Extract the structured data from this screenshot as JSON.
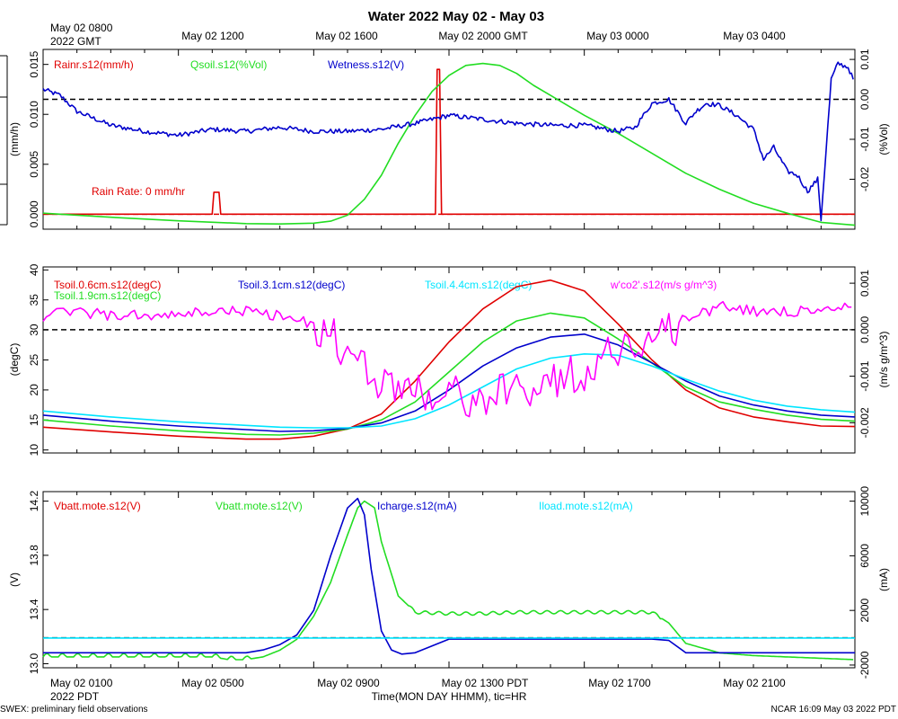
{
  "title": "Water 2022 May 02 - May 03",
  "top_time_labels": [
    "May 02 0800",
    "2022 GMT",
    "May 02 1200",
    "May 02 1600",
    "May 02 2000 GMT",
    "May 03 0000",
    "May 03 0400"
  ],
  "bottom_time_labels": [
    "May 02 0100",
    "2022 PDT",
    "May 02 0500",
    "May 02 0900",
    "May 02 1300 PDT",
    "May 02 1700",
    "May 02 2100"
  ],
  "xlabel": "Time(MON DAY HHMM), tic=HR",
  "footer_left": "SWEX: preliminary field observations",
  "footer_right": "NCAR 16:09 May 03 2022 PDT",
  "colors": {
    "red": "#e00000",
    "green": "#22dd22",
    "blue": "#0000cc",
    "cyan": "#00e5ff",
    "magenta": "#ff00ff",
    "axis": "#000000"
  },
  "chart_data": [
    {
      "type": "line",
      "id": "water",
      "x_range_hours": [
        0,
        24
      ],
      "left_axis": {
        "label": "(mm/h)",
        "ylim": [
          -0.0015,
          0.0165
        ],
        "ticks": [
          "0.015",
          "0.010",
          "0.005",
          "0.000"
        ],
        "tick_values": [
          0.015,
          0.01,
          0.005,
          0.0
        ]
      },
      "right_axis": {
        "label": "(%Vol)",
        "ylim": [
          -0.0325,
          0.0125
        ],
        "ticks": [
          "0.01",
          "0.00",
          "-0.01",
          "-0.02"
        ],
        "tick_values": [
          0.01,
          0.0,
          -0.01,
          -0.02
        ]
      },
      "ref_lines": [
        {
          "axis": "right",
          "value": 0.0,
          "color": "black",
          "dash": true
        },
        {
          "axis": "left",
          "value": 0.0,
          "color": "red",
          "dash": true
        }
      ],
      "annotation": "Rain Rate: 0 mm/hr",
      "legend": [
        {
          "text": "Rainr.s12(mm/h)",
          "color": "red"
        },
        {
          "text": "Qsoil.s12(%Vol)",
          "color": "green"
        },
        {
          "text": "Wetness.s12(V)",
          "color": "blue"
        }
      ],
      "series": [
        {
          "name": "Rainr.s12",
          "color": "red",
          "axis": "left",
          "x": [
            0,
            5.0,
            5.05,
            5.2,
            5.25,
            11.6,
            11.65,
            11.72,
            11.78,
            24
          ],
          "y": [
            0,
            0,
            0.0022,
            0.0022,
            0,
            0,
            0.0145,
            0.0145,
            0,
            0
          ]
        },
        {
          "name": "Qsoil.s12",
          "color": "green",
          "axis": "right",
          "x": [
            0,
            2,
            4,
            6,
            7,
            8,
            8.5,
            9,
            9.5,
            10,
            10.5,
            11,
            11.5,
            12,
            12.5,
            13,
            13.5,
            14,
            14.5,
            15,
            15.5,
            16,
            17,
            18,
            19,
            20,
            21,
            22,
            23,
            24
          ],
          "y": [
            -0.0285,
            -0.0295,
            -0.0304,
            -0.0311,
            -0.0312,
            -0.031,
            -0.0305,
            -0.029,
            -0.025,
            -0.019,
            -0.011,
            -0.004,
            0.002,
            0.006,
            0.0085,
            0.009,
            0.0085,
            0.0065,
            0.0035,
            0.001,
            -0.0015,
            -0.004,
            -0.0085,
            -0.0135,
            -0.0185,
            -0.0225,
            -0.026,
            -0.0285,
            -0.0308,
            -0.0315
          ]
        },
        {
          "name": "Wetness.s12",
          "color": "blue",
          "axis": "right",
          "x": [
            0,
            0.5,
            1,
            2,
            3,
            4,
            5,
            6,
            7,
            8,
            9,
            10,
            11,
            12,
            13,
            14,
            15,
            16,
            17,
            17.5,
            18,
            18.5,
            19,
            19.3,
            19.6,
            20,
            20.5,
            21,
            21.3,
            21.6,
            22,
            22.3,
            22.6,
            22.9,
            23,
            23.3,
            23.5,
            23.8,
            24
          ],
          "y": [
            0.0025,
            0.001,
            -0.003,
            -0.0065,
            -0.008,
            -0.009,
            -0.0075,
            -0.008,
            -0.007,
            -0.008,
            -0.008,
            -0.0075,
            -0.006,
            -0.004,
            -0.005,
            -0.006,
            -0.0065,
            -0.0065,
            -0.008,
            -0.007,
            -0.001,
            0.0,
            -0.006,
            -0.003,
            -0.001,
            -0.0015,
            -0.004,
            -0.0075,
            -0.015,
            -0.012,
            -0.018,
            -0.019,
            -0.023,
            -0.02,
            -0.03,
            0.005,
            0.009,
            0.008,
            0.004
          ]
        }
      ]
    },
    {
      "type": "line",
      "id": "soil",
      "x_range_hours": [
        0,
        24
      ],
      "left_axis": {
        "label": "(degC)",
        "ylim": [
          9.5,
          40.5
        ],
        "ticks": [
          "40",
          "35",
          "30",
          "25",
          "20",
          "15",
          "10"
        ],
        "tick_values": [
          40,
          35,
          30,
          25,
          20,
          15,
          10
        ]
      },
      "right_axis": {
        "label": "(m/s g/m^3)",
        "ylim": [
          -0.00265,
          0.00135
        ],
        "ticks": [
          "0.001",
          "0.000",
          "-0.001",
          "-0.002"
        ],
        "tick_values": [
          0.001,
          0.0,
          -0.001,
          -0.002
        ]
      },
      "ref_lines": [
        {
          "axis": "right",
          "value": 0.0,
          "color": "black",
          "dash": true
        }
      ],
      "legend": [
        {
          "text": "Tsoil.0.6cm.s12(degC)",
          "color": "red"
        },
        {
          "text": "Tsoil.1.9cm.s12(degC)",
          "color": "green"
        },
        {
          "text": "Tsoil.3.1cm.s12(degC)",
          "color": "blue"
        },
        {
          "text": "Tsoil.4.4cm.s12(degC)",
          "color": "cyan"
        },
        {
          "text": "w'co2'.s12(m/s g/m^3)",
          "color": "magenta"
        }
      ],
      "series": [
        {
          "name": "Tsoil.0.6cm.s12",
          "color": "red",
          "axis": "left",
          "x": [
            0,
            2,
            4,
            6,
            7,
            8,
            9,
            10,
            11,
            12,
            13,
            14,
            15,
            16,
            17,
            18,
            19,
            20,
            21,
            22,
            23,
            24
          ],
          "y": [
            13.8,
            13.0,
            12.3,
            11.8,
            11.8,
            12.3,
            13.5,
            16.0,
            21.5,
            28.0,
            33.5,
            37.2,
            38.3,
            36.5,
            31.0,
            25.0,
            20.0,
            17.0,
            15.5,
            14.7,
            14.0,
            13.9
          ]
        },
        {
          "name": "Tsoil.1.9cm.s12",
          "color": "green",
          "axis": "left",
          "x": [
            0,
            2,
            4,
            6,
            7,
            8,
            9,
            10,
            11,
            12,
            13,
            14,
            15,
            16,
            17,
            18,
            19,
            20,
            21,
            22,
            23,
            24
          ],
          "y": [
            15.0,
            14.0,
            13.2,
            12.6,
            12.5,
            12.8,
            13.5,
            15.0,
            18.0,
            23.0,
            28.0,
            31.5,
            32.8,
            32.0,
            28.5,
            24.5,
            20.5,
            18.0,
            16.8,
            15.8,
            15.1,
            14.8
          ]
        },
        {
          "name": "Tsoil.3.1cm.s12",
          "color": "blue",
          "axis": "left",
          "x": [
            0,
            2,
            4,
            6,
            7,
            8,
            9,
            10,
            11,
            12,
            13,
            14,
            15,
            16,
            17,
            18,
            19,
            20,
            21,
            22,
            23,
            24
          ],
          "y": [
            15.8,
            14.8,
            14.0,
            13.4,
            13.1,
            13.2,
            13.6,
            14.5,
            16.5,
            20.0,
            24.0,
            27.0,
            28.8,
            29.3,
            27.5,
            24.5,
            21.5,
            19.0,
            17.5,
            16.5,
            15.8,
            15.5
          ]
        },
        {
          "name": "Tsoil.4.4cm.s12",
          "color": "cyan",
          "axis": "left",
          "x": [
            0,
            2,
            4,
            6,
            7,
            8,
            9,
            10,
            11,
            12,
            13,
            14,
            15,
            16,
            17,
            18,
            19,
            20,
            21,
            22,
            23,
            24
          ],
          "y": [
            16.5,
            15.5,
            14.7,
            14.1,
            13.8,
            13.7,
            13.7,
            14.0,
            15.2,
            17.5,
            20.5,
            23.5,
            25.3,
            26.0,
            25.8,
            24.0,
            21.8,
            19.8,
            18.3,
            17.3,
            16.7,
            16.3
          ]
        },
        {
          "name": "w'co2'.s12",
          "color": "magenta",
          "axis": "right",
          "noisy": true,
          "x": [
            0,
            1,
            2,
            3,
            4,
            5,
            6,
            7,
            8,
            8.5,
            9,
            10,
            11,
            12,
            13,
            14,
            15,
            16,
            17,
            18,
            19,
            20,
            21,
            22,
            23,
            24
          ],
          "y": [
            0.0003,
            0.0004,
            0.0003,
            0.0003,
            0.0003,
            0.0004,
            0.0004,
            0.0003,
            0.0001,
            -0.0001,
            -0.0006,
            -0.0011,
            -0.0013,
            -0.0014,
            -0.0015,
            -0.0013,
            -0.0011,
            -0.0009,
            -0.0004,
            -0.0002,
            0.0002,
            0.0005,
            0.0004,
            0.0004,
            0.0004,
            0.0005
          ]
        }
      ]
    },
    {
      "type": "line",
      "id": "power",
      "x_range_hours": [
        0,
        24
      ],
      "left_axis": {
        "label": "(V)",
        "ylim": [
          12.97,
          14.27
        ],
        "ticks": [
          "14.2",
          "13.8",
          "13.4",
          "13.0"
        ],
        "tick_values": [
          14.2,
          13.8,
          13.4,
          13.0
        ]
      },
      "right_axis": {
        "label": "(mA)",
        "ylim": [
          -2200,
          10700
        ],
        "ticks": [
          "10000",
          "6000",
          "2000",
          "-2000"
        ],
        "tick_values": [
          10000,
          6000,
          2000,
          -2000
        ]
      },
      "ref_lines": [
        {
          "axis": "right",
          "value": 0,
          "color": "black",
          "dash": true
        }
      ],
      "legend": [
        {
          "text": "Vbatt.mote.s12(V)",
          "color": "red"
        },
        {
          "text": "Vbatt.mote.s12(V)",
          "color": "green"
        },
        {
          "text": "Icharge.s12(mA)",
          "color": "blue"
        },
        {
          "text": "Iload.mote.s12(mA)",
          "color": "cyan"
        }
      ],
      "series": [
        {
          "name": "Vbatt.mote.s12",
          "color": "green",
          "axis": "left",
          "x": [
            0,
            1,
            2,
            3,
            4,
            5,
            5.5,
            6,
            6.5,
            7,
            7.5,
            8,
            8.5,
            9,
            9.3,
            9.5,
            9.8,
            10,
            10.5,
            11,
            12,
            13,
            14,
            15,
            16,
            17,
            18,
            18.5,
            19,
            20,
            21,
            22,
            23,
            24
          ],
          "y": [
            13.05,
            13.05,
            13.05,
            13.05,
            13.05,
            13.05,
            13.03,
            13.03,
            13.05,
            13.1,
            13.18,
            13.35,
            13.6,
            13.95,
            14.15,
            14.2,
            14.15,
            13.9,
            13.5,
            13.38,
            13.37,
            13.37,
            13.38,
            13.38,
            13.38,
            13.38,
            13.38,
            13.3,
            13.15,
            13.08,
            13.06,
            13.05,
            13.04,
            13.03
          ]
        },
        {
          "name": "Icharge.s12",
          "color": "blue",
          "axis": "right",
          "x": [
            0,
            5,
            6,
            6.5,
            7,
            7.5,
            8,
            8.5,
            9,
            9.3,
            9.5,
            9.7,
            10,
            10.3,
            10.6,
            11,
            12,
            16,
            17,
            18,
            18.5,
            19,
            20,
            22,
            24
          ],
          "y": [
            -1100,
            -1100,
            -1100,
            -900,
            -500,
            200,
            2000,
            6000,
            9500,
            10200,
            9000,
            5000,
            500,
            -900,
            -1200,
            -1100,
            -100,
            -100,
            -100,
            -100,
            -200,
            -1100,
            -1100,
            -1100,
            -1100
          ]
        },
        {
          "name": "Iload.mote.s12",
          "color": "cyan",
          "axis": "right",
          "x": [
            0,
            24
          ],
          "y": [
            -20,
            -20
          ]
        }
      ]
    }
  ]
}
